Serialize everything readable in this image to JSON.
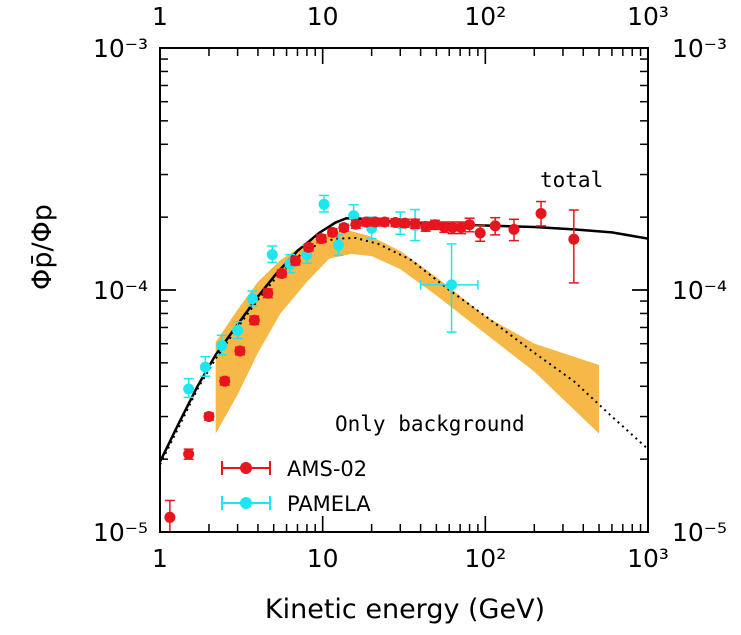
{
  "chart_data": {
    "type": "scatter",
    "xlabel": "Kinetic energy (GeV)",
    "ylabel": "Φp̄/Φp",
    "xscale": "log",
    "yscale": "log",
    "xlim": [
      1,
      1000
    ],
    "ylim": [
      1e-05,
      0.001
    ],
    "x_ticks": [
      {
        "value": 1,
        "label": "1"
      },
      {
        "value": 10,
        "label": "10"
      },
      {
        "value": 100,
        "label": "10²"
      },
      {
        "value": 1000,
        "label": "10³"
      }
    ],
    "y_ticks": [
      {
        "value": 1e-05,
        "label": "10⁻⁵"
      },
      {
        "value": 0.0001,
        "label": "10⁻⁴"
      },
      {
        "value": 0.001,
        "label": "10⁻³"
      }
    ],
    "annotations": [
      "total",
      "Only background"
    ],
    "legend": {
      "position": "bottom-left"
    },
    "series": [
      {
        "name": "AMS-02",
        "color": "#e8141e",
        "kind": "points",
        "points": [
          {
            "x": 1.15,
            "y": 1.15e-05,
            "yerr": [
              1.5e-06,
              2e-06
            ]
          },
          {
            "x": 1.5,
            "y": 2.1e-05,
            "yerr": [
              1e-06,
              1e-06
            ]
          },
          {
            "x": 2.0,
            "y": 3e-05,
            "yerr": [
              1e-06,
              1e-06
            ]
          },
          {
            "x": 2.5,
            "y": 4.2e-05,
            "yerr": [
              1.5e-06,
              1.5e-06
            ]
          },
          {
            "x": 3.1,
            "y": 5.6e-05,
            "yerr": [
              2e-06,
              2e-06
            ]
          },
          {
            "x": 3.8,
            "y": 7.5e-05,
            "yerr": [
              3e-06,
              3e-06
            ]
          },
          {
            "x": 4.6,
            "y": 9.7e-05,
            "yerr": [
              4e-06,
              4e-06
            ]
          },
          {
            "x": 5.6,
            "y": 0.000117,
            "yerr": [
              4e-06,
              4e-06
            ]
          },
          {
            "x": 6.8,
            "y": 0.000132,
            "yerr": [
              5e-06,
              5e-06
            ]
          },
          {
            "x": 8.2,
            "y": 0.00015,
            "yerr": [
              5e-06,
              5e-06
            ]
          },
          {
            "x": 9.8,
            "y": 0.000163,
            "yerr": [
              6e-06,
              6e-06
            ]
          },
          {
            "x": 11.5,
            "y": 0.000173,
            "yerr": [
              6e-06,
              6e-06
            ]
          },
          {
            "x": 13.5,
            "y": 0.000181,
            "yerr": [
              6e-06,
              6e-06
            ]
          },
          {
            "x": 16,
            "y": 0.000187,
            "yerr": [
              7e-06,
              7e-06
            ]
          },
          {
            "x": 18.5,
            "y": 0.000191,
            "yerr": [
              7e-06,
              7e-06
            ]
          },
          {
            "x": 21,
            "y": 0.000191,
            "yerr": [
              7e-06,
              7e-06
            ]
          },
          {
            "x": 24,
            "y": 0.000191,
            "yerr": [
              7e-06,
              7e-06
            ]
          },
          {
            "x": 28,
            "y": 0.00019,
            "yerr": [
              7e-06,
              7e-06
            ]
          },
          {
            "x": 32,
            "y": 0.000189,
            "yerr": [
              7e-06,
              7e-06
            ]
          },
          {
            "x": 37,
            "y": 0.000188,
            "yerr": [
              8e-06,
              8e-06
            ]
          },
          {
            "x": 43,
            "y": 0.000183,
            "yerr": [
              8e-06,
              8e-06
            ]
          },
          {
            "x": 49,
            "y": 0.000186,
            "yerr": [
              8e-06,
              8e-06
            ]
          },
          {
            "x": 56,
            "y": 0.000182,
            "yerr": [
              9e-06,
              9e-06
            ]
          },
          {
            "x": 63,
            "y": 0.000181,
            "yerr": [
              1e-05,
              1e-05
            ]
          },
          {
            "x": 71,
            "y": 0.000181,
            "yerr": [
              1e-05,
              1e-05
            ]
          },
          {
            "x": 80,
            "y": 0.000186,
            "yerr": [
              1.2e-05,
              1.2e-05
            ]
          },
          {
            "x": 93,
            "y": 0.000172,
            "yerr": [
              1.3e-05,
              1.3e-05
            ]
          },
          {
            "x": 115,
            "y": 0.000184,
            "yerr": [
              1.5e-05,
              1.5e-05
            ]
          },
          {
            "x": 150,
            "y": 0.000178,
            "yerr": [
              1.8e-05,
              1.8e-05
            ]
          },
          {
            "x": 220,
            "y": 0.000207,
            "yerr": [
              2.3e-05,
              2.5e-05
            ]
          },
          {
            "x": 350,
            "y": 0.000162,
            "yerr": [
              5.5e-05,
              5.2e-05
            ]
          }
        ]
      },
      {
        "name": "PAMELA",
        "color": "#1ee6f0",
        "kind": "points",
        "points": [
          {
            "x": 1.5,
            "y": 3.9e-05,
            "yerr": [
              3e-06,
              4e-06
            ]
          },
          {
            "x": 1.9,
            "y": 4.8e-05,
            "yerr": [
              4e-06,
              5e-06
            ]
          },
          {
            "x": 2.4,
            "y": 5.9e-05,
            "yerr": [
              5e-06,
              6e-06
            ]
          },
          {
            "x": 3.0,
            "y": 6.8e-05,
            "yerr": [
              5e-06,
              6e-06
            ]
          },
          {
            "x": 3.7,
            "y": 9.2e-05,
            "yerr": [
              6e-06,
              7e-06
            ]
          },
          {
            "x": 4.9,
            "y": 0.00014,
            "yerr": [
              1e-05,
              1.2e-05
            ]
          },
          {
            "x": 6.3,
            "y": 0.000128,
            "yerr": [
              1e-05,
              1.2e-05
            ]
          },
          {
            "x": 8.0,
            "y": 0.00014,
            "yerr": [
              1.1e-05,
              1.3e-05
            ]
          },
          {
            "x": 10.2,
            "y": 0.000226,
            "yerr": [
              1.6e-05,
              2e-05
            ]
          },
          {
            "x": 12.5,
            "y": 0.000153,
            "yerr": [
              1.4e-05,
              1.6e-05
            ]
          },
          {
            "x": 15.5,
            "y": 0.000203,
            "yerr": [
              1.8e-05,
              2.2e-05
            ]
          },
          {
            "x": 20,
            "y": 0.00018,
            "yerr": [
              1.7e-05,
              2e-05
            ]
          },
          {
            "x": 30,
            "y": 0.000188,
            "yerr": [
              1.8e-05,
              2.2e-05
            ]
          },
          {
            "x": 37,
            "y": 0.000185,
            "yerr": [
              2.5e-05,
              3e-05
            ]
          },
          {
            "x": 62,
            "y": 0.000105,
            "yerr": [
              3.8e-05,
              5e-05
            ],
            "xerr": [
              22,
              28
            ]
          }
        ]
      },
      {
        "name": "total",
        "color": "#000000",
        "kind": "line",
        "points": [
          [
            1.0,
            1.95e-05
          ],
          [
            1.3,
            2.8e-05
          ],
          [
            1.7,
            4e-05
          ],
          [
            2.2,
            5.4e-05
          ],
          [
            3.0,
            7.2e-05
          ],
          [
            4.0,
            9.4e-05
          ],
          [
            5.2,
            0.000117
          ],
          [
            7.0,
            0.000145
          ],
          [
            9.5,
            0.000172
          ],
          [
            12,
            0.00019
          ],
          [
            14,
            0.000198
          ],
          [
            18,
            0.000197
          ],
          [
            25,
            0.000193
          ],
          [
            40,
            0.000189
          ],
          [
            70,
            0.000186
          ],
          [
            120,
            0.000184
          ],
          [
            200,
            0.000182
          ],
          [
            350,
            0.000178
          ],
          [
            600,
            0.000173
          ],
          [
            1000,
            0.000163
          ]
        ]
      },
      {
        "name": "Only background",
        "color": "#000000",
        "kind": "dotted",
        "points": [
          [
            1.0,
            1.9e-05
          ],
          [
            1.3,
            2.7e-05
          ],
          [
            1.7,
            3.9e-05
          ],
          [
            2.2,
            5.2e-05
          ],
          [
            3.0,
            7e-05
          ],
          [
            4.0,
            9.1e-05
          ],
          [
            5.2,
            0.000113
          ],
          [
            7.0,
            0.000137
          ],
          [
            9.5,
            0.000156
          ],
          [
            12,
            0.000163
          ],
          [
            16,
            0.000164
          ],
          [
            22,
            0.000155
          ],
          [
            35,
            0.000133
          ],
          [
            60,
            0.0001
          ],
          [
            100,
            7.8e-05
          ],
          [
            200,
            5.5e-05
          ],
          [
            350,
            4.2e-05
          ],
          [
            600,
            3e-05
          ],
          [
            1000,
            2.2e-05
          ]
        ]
      },
      {
        "name": "background band",
        "color": "#f6b846",
        "kind": "band",
        "upper": [
          [
            2.2,
            6.1e-05
          ],
          [
            3.0,
            8.3e-05
          ],
          [
            4.0,
            0.000108
          ],
          [
            5.5,
            0.000133
          ],
          [
            8.0,
            0.000157
          ],
          [
            11,
            0.000173
          ],
          [
            15,
            0.000175
          ],
          [
            20,
            0.000166
          ],
          [
            30,
            0.000145
          ],
          [
            50,
            0.000113
          ],
          [
            100,
            7.8e-05
          ],
          [
            200,
            6e-05
          ],
          [
            500,
            4.9e-05
          ]
        ],
        "lower": [
          [
            2.2,
            2.55e-05
          ],
          [
            3.0,
            3.7e-05
          ],
          [
            4.0,
            5.5e-05
          ],
          [
            5.5,
            8e-05
          ],
          [
            8.0,
            0.000108
          ],
          [
            11,
            0.000135
          ],
          [
            15,
            0.000141
          ],
          [
            20,
            0.000138
          ],
          [
            30,
            0.000122
          ],
          [
            50,
            9.5e-05
          ],
          [
            100,
            6.6e-05
          ],
          [
            200,
            4.6e-05
          ],
          [
            500,
            2.55e-05
          ]
        ]
      }
    ]
  }
}
